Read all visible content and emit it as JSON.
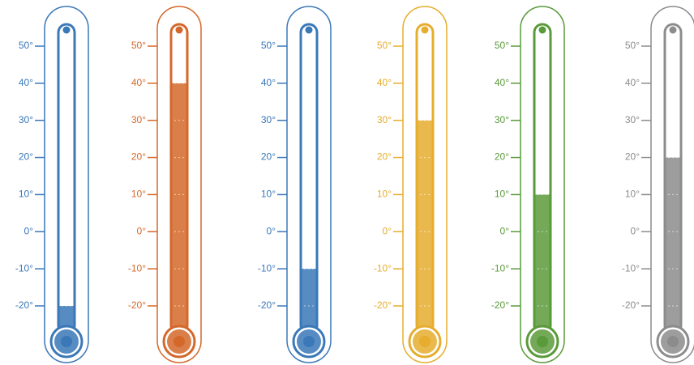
{
  "chart_data": [
    {
      "type": "thermometer",
      "color": "#3a78b8",
      "value": -20,
      "ylim": [
        -20,
        50
      ],
      "yticks": [
        {
          "value": -20,
          "label": "-20°"
        },
        {
          "value": -10,
          "label": "-10°"
        },
        {
          "value": 0,
          "label": "0°"
        },
        {
          "value": 10,
          "label": "10°"
        },
        {
          "value": 20,
          "label": "20°"
        },
        {
          "value": 30,
          "label": "30°"
        },
        {
          "value": 40,
          "label": "40°"
        },
        {
          "value": 50,
          "label": "50°"
        }
      ]
    },
    {
      "type": "thermometer",
      "color": "#d4682a",
      "value": 40,
      "ylim": [
        -20,
        50
      ],
      "yticks": [
        {
          "value": -20,
          "label": "-20°"
        },
        {
          "value": -10,
          "label": "-10°"
        },
        {
          "value": 0,
          "label": "0°"
        },
        {
          "value": 10,
          "label": "10°"
        },
        {
          "value": 20,
          "label": "20°"
        },
        {
          "value": 30,
          "label": "30°"
        },
        {
          "value": 40,
          "label": "40°"
        },
        {
          "value": 50,
          "label": "50°"
        }
      ]
    },
    {
      "type": "thermometer",
      "color": "#3a78b8",
      "value": -10,
      "ylim": [
        -20,
        50
      ],
      "yticks": [
        {
          "value": -20,
          "label": "-20°"
        },
        {
          "value": -10,
          "label": "-10°"
        },
        {
          "value": 0,
          "label": "0°"
        },
        {
          "value": 10,
          "label": "10°"
        },
        {
          "value": 20,
          "label": "20°"
        },
        {
          "value": 30,
          "label": "30°"
        },
        {
          "value": 40,
          "label": "40°"
        },
        {
          "value": 50,
          "label": "50°"
        }
      ]
    },
    {
      "type": "thermometer",
      "color": "#e6ad2e",
      "value": 30,
      "ylim": [
        -20,
        50
      ],
      "yticks": [
        {
          "value": -20,
          "label": "-20°"
        },
        {
          "value": -10,
          "label": "-10°"
        },
        {
          "value": 0,
          "label": "0°"
        },
        {
          "value": 10,
          "label": "10°"
        },
        {
          "value": 20,
          "label": "20°"
        },
        {
          "value": 30,
          "label": "30°"
        },
        {
          "value": 40,
          "label": "40°"
        },
        {
          "value": 50,
          "label": "50°"
        }
      ]
    },
    {
      "type": "thermometer",
      "color": "#5a9a3a",
      "value": 10,
      "ylim": [
        -20,
        50
      ],
      "yticks": [
        {
          "value": -20,
          "label": "-20°"
        },
        {
          "value": -10,
          "label": "-10°"
        },
        {
          "value": 0,
          "label": "0°"
        },
        {
          "value": 10,
          "label": "10°"
        },
        {
          "value": 20,
          "label": "20°"
        },
        {
          "value": 30,
          "label": "30°"
        },
        {
          "value": 40,
          "label": "40°"
        },
        {
          "value": 50,
          "label": "50°"
        }
      ]
    },
    {
      "type": "thermometer",
      "color": "#8c8c8c",
      "value": 20,
      "ylim": [
        -20,
        50
      ],
      "yticks": [
        {
          "value": -20,
          "label": "-20°"
        },
        {
          "value": -10,
          "label": "-10°"
        },
        {
          "value": 0,
          "label": "0°"
        },
        {
          "value": 10,
          "label": "10°"
        },
        {
          "value": 20,
          "label": "20°"
        },
        {
          "value": 30,
          "label": "30°"
        },
        {
          "value": 40,
          "label": "40°"
        },
        {
          "value": 50,
          "label": "50°"
        }
      ]
    }
  ]
}
